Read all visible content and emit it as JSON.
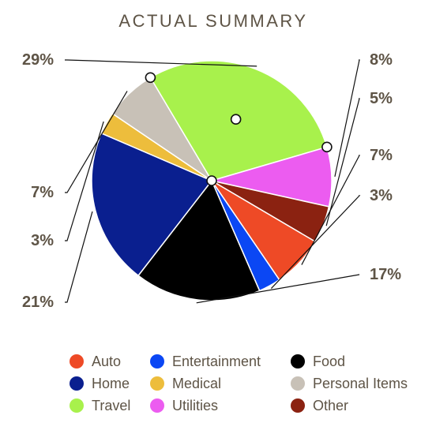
{
  "chart_data": {
    "type": "pie",
    "title": "ACTUAL SUMMARY",
    "slices": [
      {
        "label": "Travel",
        "value": 29,
        "display": "29%",
        "color": "#a8f14c"
      },
      {
        "label": "Utilities",
        "value": 8,
        "display": "8%",
        "color": "#ec5cf0"
      },
      {
        "label": "Other",
        "value": 5,
        "display": "5%",
        "color": "#8b2211"
      },
      {
        "label": "Auto",
        "value": 7,
        "display": "7%",
        "color": "#ee4a26"
      },
      {
        "label": "Entertainment",
        "value": 3,
        "display": "3%",
        "color": "#0b47f4"
      },
      {
        "label": "Food",
        "value": 17,
        "display": "17%",
        "color": "#000000"
      },
      {
        "label": "Home",
        "value": 21,
        "display": "21%",
        "color": "#0a1f8f"
      },
      {
        "label": "Medical",
        "value": 3,
        "display": "3%",
        "color": "#edbd3c"
      },
      {
        "label": "Personal Items",
        "value": 7,
        "display": "7%",
        "color": "#c8c1b7"
      }
    ],
    "legend": [
      {
        "label": "Auto",
        "color": "#ee4a26"
      },
      {
        "label": "Entertainment",
        "color": "#0b47f4"
      },
      {
        "label": "Food",
        "color": "#000000"
      },
      {
        "label": "Home",
        "color": "#0a1f8f"
      },
      {
        "label": "Medical",
        "color": "#edbd3c"
      },
      {
        "label": "Personal Items",
        "color": "#c8c1b7"
      },
      {
        "label": "Travel",
        "color": "#a8f14c"
      },
      {
        "label": "Utilities",
        "color": "#ec5cf0"
      },
      {
        "label": "Other",
        "color": "#8b2211"
      }
    ],
    "legend_position": "bottom"
  }
}
